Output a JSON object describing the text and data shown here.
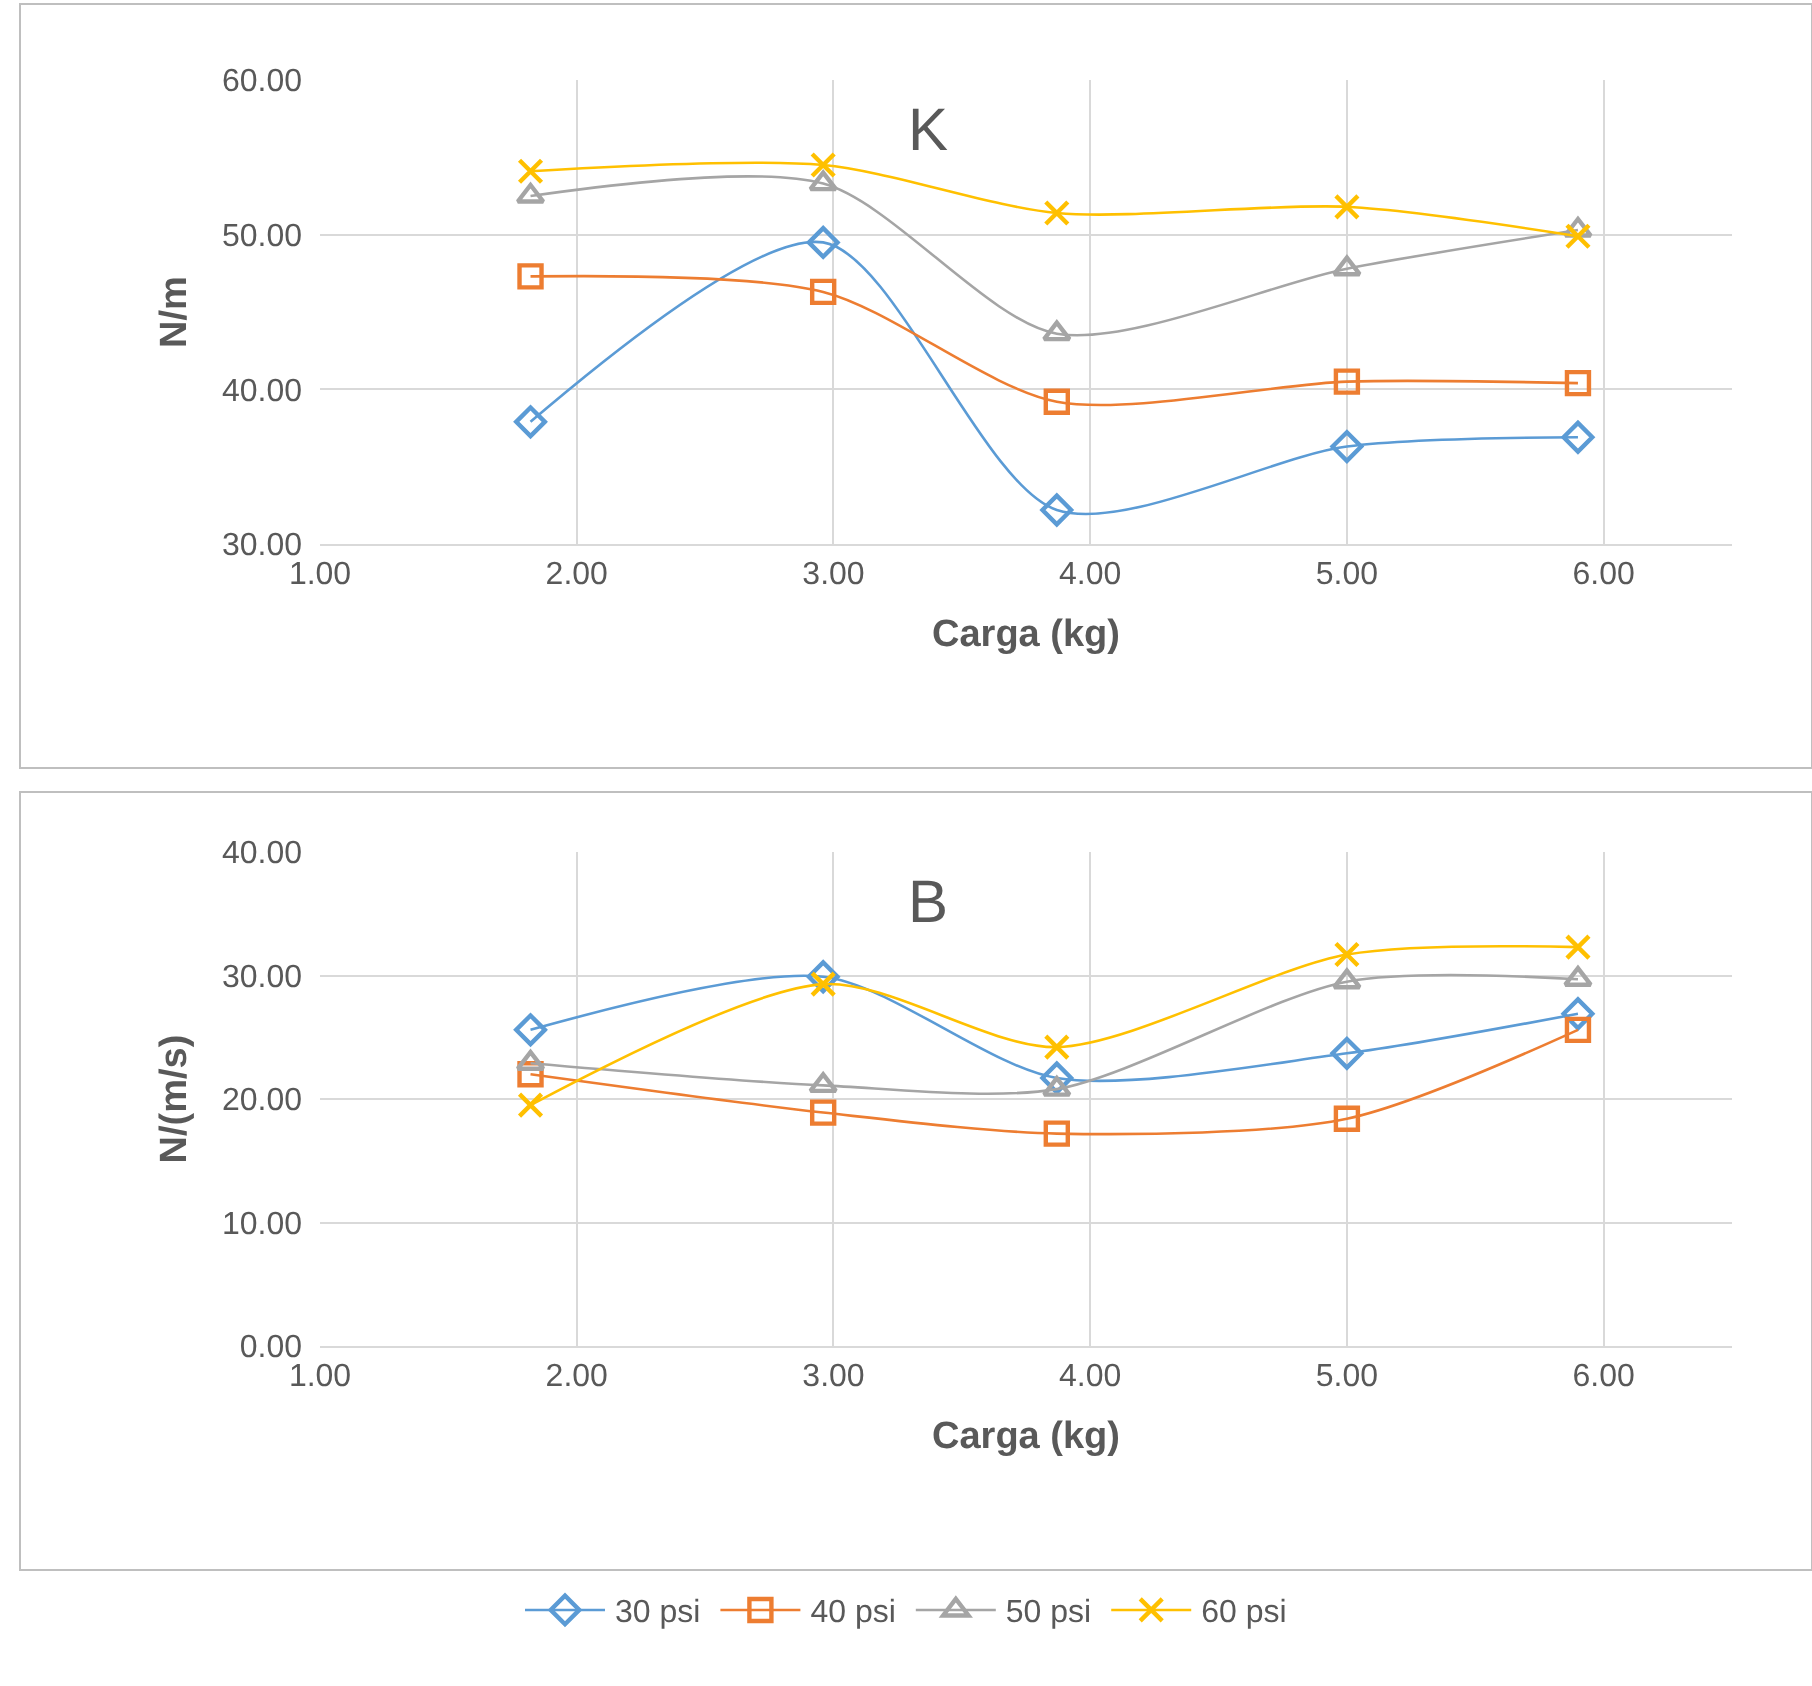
{
  "chart_data": [
    {
      "type": "line",
      "title": "K",
      "xlabel": "Carga (kg)",
      "ylabel": "N/m",
      "x": [
        1.82,
        2.96,
        3.87,
        5.0,
        5.9
      ],
      "xlim": [
        1,
        6.5
      ],
      "xticks": [
        {
          "value": 1,
          "label": "1.00"
        },
        {
          "value": 2,
          "label": "2.00"
        },
        {
          "value": 3,
          "label": "3.00"
        },
        {
          "value": 4,
          "label": "4.00"
        },
        {
          "value": 5,
          "label": "5.00"
        },
        {
          "value": 6,
          "label": "6.00"
        }
      ],
      "ylim": [
        30,
        60
      ],
      "yticks": [
        {
          "value": 30,
          "label": "30.00"
        },
        {
          "value": 40,
          "label": "40.00"
        },
        {
          "value": 50,
          "label": "50.00"
        },
        {
          "value": 60,
          "label": "60.00"
        }
      ],
      "grid": true,
      "legend": "bottom",
      "series": [
        {
          "name": "30 psi",
          "color": "#5b9bd5",
          "marker": "diamond",
          "values": [
            37.9,
            49.5,
            32.2,
            36.3,
            36.9
          ]
        },
        {
          "name": "40 psi",
          "color": "#ed7d31",
          "marker": "square",
          "values": [
            47.3,
            46.3,
            39.2,
            40.5,
            40.4
          ]
        },
        {
          "name": "50 psi",
          "color": "#a5a5a5",
          "marker": "triangle",
          "values": [
            52.5,
            53.3,
            43.6,
            47.8,
            50.3
          ]
        },
        {
          "name": "60 psi",
          "color": "#ffc000",
          "marker": "cross",
          "values": [
            54.1,
            54.5,
            51.4,
            51.8,
            49.9
          ]
        }
      ]
    },
    {
      "type": "line",
      "title": "B",
      "xlabel": "Carga (kg)",
      "ylabel": "N/(m/s)",
      "x": [
        1.82,
        2.96,
        3.87,
        5.0,
        5.9
      ],
      "xlim": [
        1,
        6.5
      ],
      "xticks": [
        {
          "value": 1,
          "label": "1.00"
        },
        {
          "value": 2,
          "label": "2.00"
        },
        {
          "value": 3,
          "label": "3.00"
        },
        {
          "value": 4,
          "label": "4.00"
        },
        {
          "value": 5,
          "label": "5.00"
        },
        {
          "value": 6,
          "label": "6.00"
        }
      ],
      "ylim": [
        0,
        40
      ],
      "yticks": [
        {
          "value": 0,
          "label": "0.00"
        },
        {
          "value": 10,
          "label": "10.00"
        },
        {
          "value": 20,
          "label": "20.00"
        },
        {
          "value": 30,
          "label": "30.00"
        },
        {
          "value": 40,
          "label": "40.00"
        }
      ],
      "grid": true,
      "legend": "bottom",
      "series": [
        {
          "name": "30 psi",
          "color": "#5b9bd5",
          "marker": "diamond",
          "values": [
            25.6,
            29.9,
            21.7,
            23.7,
            26.9
          ]
        },
        {
          "name": "40 psi",
          "color": "#ed7d31",
          "marker": "square",
          "values": [
            22.0,
            18.9,
            17.2,
            18.4,
            25.6
          ]
        },
        {
          "name": "50 psi",
          "color": "#a5a5a5",
          "marker": "triangle",
          "values": [
            22.9,
            21.1,
            20.8,
            29.5,
            29.7
          ]
        },
        {
          "name": "60 psi",
          "color": "#ffc000",
          "marker": "cross",
          "values": [
            19.5,
            29.3,
            24.2,
            31.7,
            32.3
          ]
        }
      ]
    }
  ]
}
